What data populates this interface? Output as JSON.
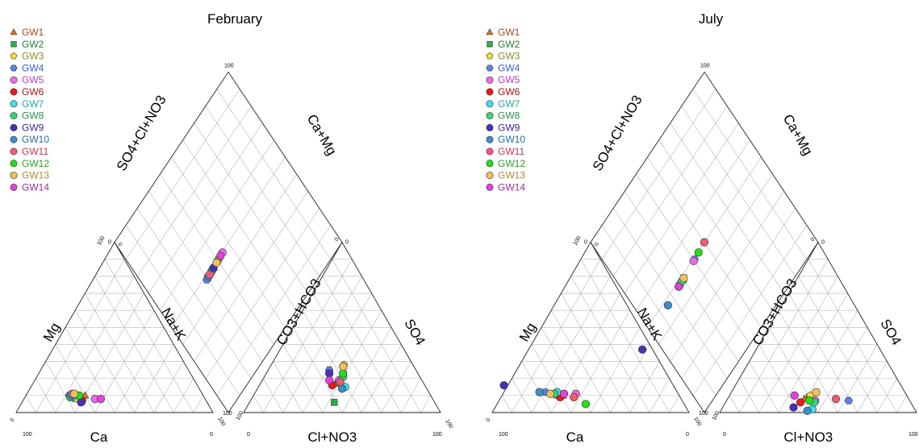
{
  "series": [
    {
      "name": "GW1",
      "color": "#e0712a",
      "text_color": "#9a4a20",
      "marker": "triangle"
    },
    {
      "name": "GW2",
      "color": "#2fae44",
      "text_color": "#2a7a38",
      "marker": "square"
    },
    {
      "name": "GW3",
      "color": "#f2e12b",
      "text_color": "#8c8a2a",
      "marker": "pentagon"
    },
    {
      "name": "GW4",
      "color": "#5b7ff0",
      "text_color": "#3a5cc8",
      "marker": "hexagon"
    },
    {
      "name": "GW5",
      "color": "#e86ce6",
      "text_color": "#b040b0",
      "marker": "circle"
    },
    {
      "name": "GW6",
      "color": "#e8191b",
      "text_color": "#a01010",
      "marker": "circle"
    },
    {
      "name": "GW7",
      "color": "#3fe0e6",
      "text_color": "#2aa0a8",
      "marker": "circle"
    },
    {
      "name": "GW8",
      "color": "#36d67b",
      "text_color": "#2a8a55",
      "marker": "circle"
    },
    {
      "name": "GW9",
      "color": "#4a2fb8",
      "text_color": "#3a2a90",
      "marker": "circle"
    },
    {
      "name": "GW10",
      "color": "#3a8fc8",
      "text_color": "#2a6e98",
      "marker": "circle"
    },
    {
      "name": "GW11",
      "color": "#ef5c72",
      "text_color": "#b83a4e",
      "marker": "circle"
    },
    {
      "name": "GW12",
      "color": "#22e018",
      "text_color": "#28a020",
      "marker": "circle"
    },
    {
      "name": "GW13",
      "color": "#f0c060",
      "text_color": "#a88a3a",
      "marker": "circle"
    },
    {
      "name": "GW14",
      "color": "#e43fe0",
      "text_color": "#a02aa0",
      "marker": "circle"
    }
  ],
  "chart_data": [
    {
      "type": "scatter",
      "subtype": "piper-diagram",
      "title": "February",
      "axes": {
        "cation_left": "Mg",
        "cation_bottom": "Ca",
        "cation_right": "Na+K",
        "anion_left": "CO3+HCO3",
        "anion_bottom": "Cl+NO3",
        "anion_right": "SO4",
        "diamond_left": "SO4+Cl+NO3",
        "diamond_right": "Ca+Mg"
      },
      "ticks": {
        "min": "0",
        "max": "100"
      },
      "legend": "top-left",
      "units": "percent",
      "points": [
        {
          "id": "GW1",
          "cation": {
            "ca": 60,
            "mg": 10,
            "nak": 30
          },
          "anion": {
            "cl": 38,
            "so4": 17,
            "hco3": 45
          }
        },
        {
          "id": "GW2",
          "cation": {
            "ca": 63,
            "mg": 7,
            "nak": 30
          },
          "anion": {
            "cl": 43,
            "so4": 6,
            "hco3": 51
          }
        },
        {
          "id": "GW3",
          "cation": {
            "ca": 66,
            "mg": 8,
            "nak": 26
          },
          "anion": {
            "cl": 37,
            "so4": 28,
            "hco3": 35
          }
        },
        {
          "id": "GW4",
          "cation": {
            "ca": 68,
            "mg": 10,
            "nak": 22
          },
          "anion": {
            "cl": 31,
            "so4": 25,
            "hco3": 44
          }
        },
        {
          "id": "GW5",
          "cation": {
            "ca": 56,
            "mg": 8,
            "nak": 36
          },
          "anion": {
            "cl": 39,
            "so4": 19,
            "hco3": 42
          }
        },
        {
          "id": "GW6",
          "cation": {
            "ca": 63,
            "mg": 7,
            "nak": 30
          },
          "anion": {
            "cl": 37,
            "so4": 16,
            "hco3": 47
          }
        },
        {
          "id": "GW7",
          "cation": {
            "ca": 67,
            "mg": 9,
            "nak": 24
          },
          "anion": {
            "cl": 44,
            "so4": 15,
            "hco3": 41
          }
        },
        {
          "id": "GW8",
          "cation": {
            "ca": 68,
            "mg": 9,
            "nak": 23
          },
          "anion": {
            "cl": 40,
            "so4": 21,
            "hco3": 39
          }
        },
        {
          "id": "GW9",
          "cation": {
            "ca": 64,
            "mg": 6,
            "nak": 30
          },
          "anion": {
            "cl": 32,
            "so4": 23,
            "hco3": 45
          }
        },
        {
          "id": "GW10",
          "cation": {
            "ca": 67,
            "mg": 10,
            "nak": 23
          },
          "anion": {
            "cl": 43,
            "so4": 14,
            "hco3": 43
          }
        },
        {
          "id": "GW11",
          "cation": {
            "ca": 66,
            "mg": 11,
            "nak": 23
          },
          "anion": {
            "cl": 40,
            "so4": 18,
            "hco3": 42
          }
        },
        {
          "id": "GW12",
          "cation": {
            "ca": 63,
            "mg": 10,
            "nak": 27
          },
          "anion": {
            "cl": 39,
            "so4": 23,
            "hco3": 38
          }
        },
        {
          "id": "GW13",
          "cation": {
            "ca": 65,
            "mg": 11,
            "nak": 24
          },
          "anion": {
            "cl": 37,
            "so4": 27,
            "hco3": 36
          }
        },
        {
          "id": "GW14",
          "cation": {
            "ca": 53,
            "mg": 8,
            "nak": 39
          },
          "anion": {
            "cl": 34,
            "so4": 19,
            "hco3": 47
          }
        }
      ]
    },
    {
      "type": "scatter",
      "subtype": "piper-diagram",
      "title": "July",
      "axes": {
        "cation_left": "Mg",
        "cation_bottom": "Ca",
        "cation_right": "Na+K",
        "anion_left": "CO3+HCO3",
        "anion_bottom": "Cl+NO3",
        "anion_right": "SO4",
        "diamond_left": "SO4+Cl+NO3",
        "diamond_right": "Ca+Mg"
      },
      "ticks": {
        "min": "0",
        "max": "100"
      },
      "legend": "top-left",
      "units": "percent",
      "points": [
        {
          "id": "GW1",
          "cation": {
            "ca": 59,
            "mg": 10,
            "nak": 31
          },
          "anion": {
            "cl": 39,
            "so4": 8,
            "hco3": 53
          }
        },
        {
          "id": "GW2",
          "cation": {
            "ca": 61,
            "mg": 10,
            "nak": 29
          },
          "anion": {
            "cl": 41,
            "so4": 9,
            "hco3": 50
          }
        },
        {
          "id": "GW3",
          "cation": {
            "ca": 62,
            "mg": 10,
            "nak": 28
          },
          "anion": {
            "cl": 41,
            "so4": 10,
            "hco3": 49
          }
        },
        {
          "id": "GW4",
          "cation": {
            "ca": 67,
            "mg": 12,
            "nak": 21
          },
          "anion": {
            "cl": 62,
            "so4": 7,
            "hco3": 31
          }
        },
        {
          "id": "GW5",
          "cation": {
            "ca": 52,
            "mg": 11,
            "nak": 37
          },
          "anion": {
            "cl": 45,
            "so4": 7,
            "hco3": 48
          }
        },
        {
          "id": "GW6",
          "cation": {
            "ca": 61,
            "mg": 9,
            "nak": 30
          },
          "anion": {
            "cl": 38,
            "so4": 6,
            "hco3": 56
          }
        },
        {
          "id": "GW7",
          "cation": {
            "ca": 61,
            "mg": 12,
            "nak": 27
          },
          "anion": {
            "cl": 46,
            "so4": 2,
            "hco3": 52
          }
        },
        {
          "id": "GW8",
          "cation": {
            "ca": 63,
            "mg": 11,
            "nak": 26
          },
          "anion": {
            "cl": 45,
            "so4": 6,
            "hco3": 49
          }
        },
        {
          "id": "GW9",
          "cation": {
            "ca": 86,
            "mg": 16,
            "nak": -2
          },
          "anion": {
            "cl": 36,
            "so4": 3,
            "hco3": 61
          }
        },
        {
          "id": "GW10",
          "cation": {
            "ca": 70,
            "mg": 12,
            "nak": 18
          },
          "anion": {
            "cl": 44,
            "so4": 1,
            "hco3": 55
          }
        },
        {
          "id": "GW11",
          "cation": {
            "ca": 54,
            "mg": 9,
            "nak": 37
          },
          "anion": {
            "cl": 55,
            "so4": 8,
            "hco3": 37
          }
        },
        {
          "id": "GW12",
          "cation": {
            "ca": 50,
            "mg": 5,
            "nak": 45
          },
          "anion": {
            "cl": 42,
            "so4": 7,
            "hco3": 51
          }
        },
        {
          "id": "GW13",
          "cation": {
            "ca": 65,
            "mg": 11,
            "nak": 24
          },
          "anion": {
            "cl": 43,
            "so4": 12,
            "hco3": 45
          }
        },
        {
          "id": "GW14",
          "cation": {
            "ca": 58,
            "mg": 11,
            "nak": 31
          },
          "anion": {
            "cl": 33,
            "so4": 10,
            "hco3": 57
          }
        }
      ]
    }
  ]
}
